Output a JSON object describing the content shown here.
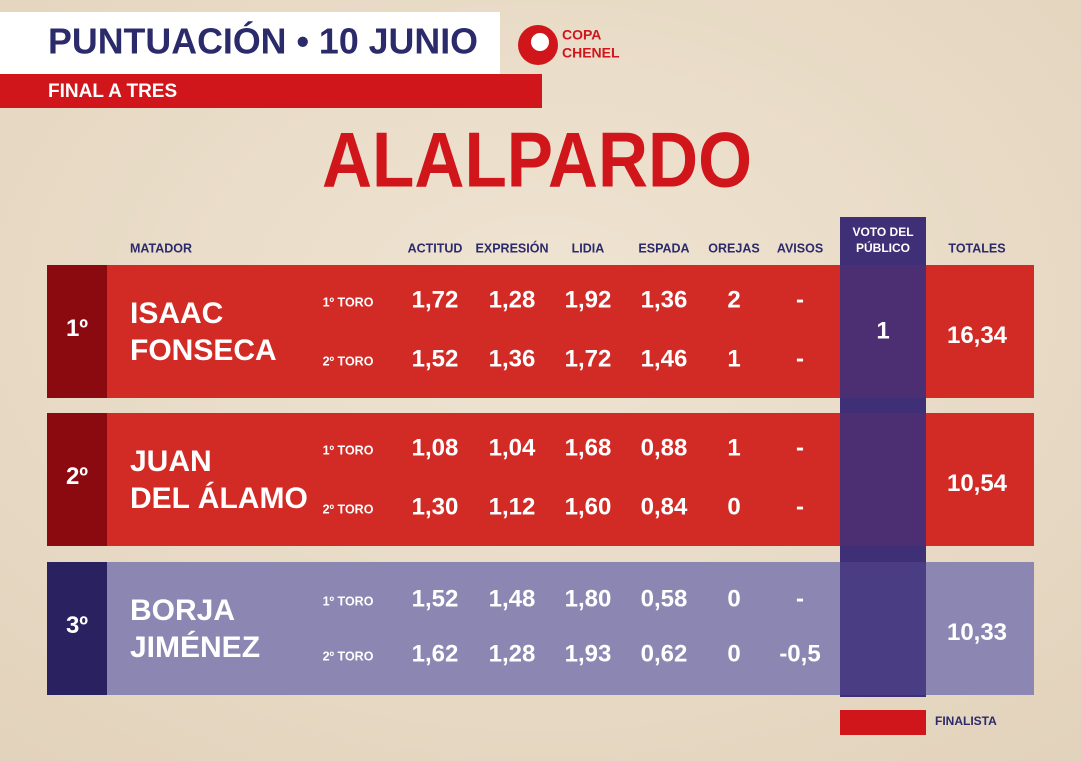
{
  "header": {
    "title": "PUNTUACIÓN • 10 JUNIO",
    "subtitle": "FINAL A TRES",
    "logo": [
      "COPA",
      "CHENEL"
    ]
  },
  "venue": "ALALPARDO",
  "columns": [
    "MATADOR",
    "ACTITUD",
    "EXPRESIÓN",
    "LIDIA",
    "ESPADA",
    "OREJAS",
    "AVISOS",
    "VOTO DEL PÚBLICO",
    "TOTALES"
  ],
  "rows": [
    {
      "rank": "1º",
      "name": [
        "ISAAC",
        "FONSECA"
      ],
      "finalist": true,
      "toros": [
        {
          "label": "1º TORO",
          "values": [
            "1,72",
            "1,28",
            "1,92",
            "1,36",
            "2",
            "-"
          ]
        },
        {
          "label": "2º TORO",
          "values": [
            "1,52",
            "1,36",
            "1,72",
            "1,46",
            "1",
            "-"
          ]
        }
      ],
      "voto": "1",
      "total": "16,34"
    },
    {
      "rank": "2º",
      "name": [
        "JUAN",
        "DEL ÁLAMO"
      ],
      "finalist": true,
      "toros": [
        {
          "label": "1º TORO",
          "values": [
            "1,08",
            "1,04",
            "1,68",
            "0,88",
            "1",
            "-"
          ]
        },
        {
          "label": "2º TORO",
          "values": [
            "1,30",
            "1,12",
            "1,60",
            "0,84",
            "0",
            "-"
          ]
        }
      ],
      "total": "10,54"
    },
    {
      "rank": "3º",
      "name": [
        "BORJA",
        "JIMÉNEZ"
      ],
      "finalist": false,
      "toros": [
        {
          "label": "1º TORO",
          "values": [
            "1,52",
            "1,48",
            "1,80",
            "0,58",
            "0",
            "-"
          ]
        },
        {
          "label": "2º TORO",
          "values": [
            "1,62",
            "1,28",
            "1,93",
            "0,62",
            "0",
            "-0,5"
          ]
        }
      ],
      "total": "10,33"
    }
  ],
  "legend": "FINALISTA"
}
